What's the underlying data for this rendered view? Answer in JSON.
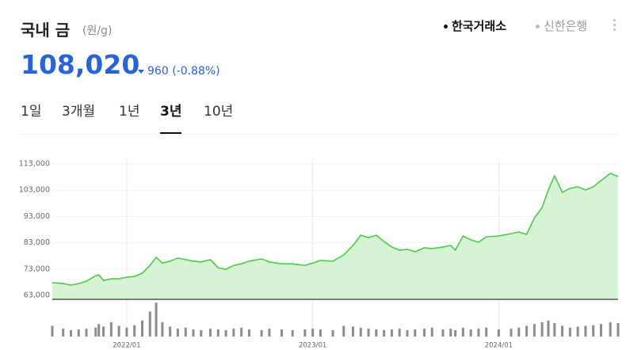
{
  "header": {
    "title": "국내 금",
    "unit": "(원/g)",
    "sources": [
      "한국거래소",
      "신한은행"
    ],
    "price": "108,020",
    "change": "960",
    "change_pct": "(-0.88%)",
    "tabs": [
      "1일",
      "3개월",
      "1년",
      "3년",
      "10년"
    ],
    "active_tab": 3
  },
  "chart_data": {
    "type": "line",
    "color": "#4cc94c",
    "fill": "#d6f3d3",
    "grid": true,
    "x": [
      0,
      0.7,
      1.2,
      1.7,
      2.2,
      2.8,
      3.0,
      3.3,
      3.8,
      4.3,
      4.8,
      5.3,
      5.8,
      6.3,
      6.7,
      7.1,
      7.6,
      8.1,
      8.6,
      9.1,
      9.6,
      10.2,
      10.7,
      11.2,
      11.7,
      12.2,
      12.7,
      13.5,
      14.0,
      14.8,
      15.5,
      16.3,
      16.8,
      17.3,
      18.1,
      18.8,
      19.4,
      19.9,
      20.4,
      20.9,
      21.4,
      21.9,
      22.4,
      22.9,
      23.4,
      24.0,
      24.5,
      25.2,
      25.7,
      26.0,
      26.5,
      27.0,
      27.5,
      28.0,
      28.8,
      29.6,
      30.1,
      30.6,
      31.1,
      31.6,
      32.0,
      32.4,
      32.9,
      33.4,
      33.9,
      34.4,
      34.9,
      35.4,
      36.0,
      36.5
    ],
    "values": [
      67800,
      67500,
      66900,
      67500,
      68400,
      70500,
      70800,
      68700,
      69300,
      69300,
      69900,
      70200,
      71400,
      74400,
      77500,
      75300,
      76000,
      77200,
      76600,
      76000,
      75700,
      76600,
      73500,
      72900,
      74400,
      75000,
      76000,
      76900,
      75700,
      75000,
      75000,
      74400,
      75300,
      76300,
      76000,
      78400,
      82000,
      85900,
      85000,
      85900,
      83500,
      81400,
      80200,
      80500,
      79600,
      81100,
      80800,
      81400,
      82000,
      80200,
      85600,
      84100,
      83200,
      85300,
      85600,
      86500,
      87100,
      86200,
      92500,
      96400,
      103100,
      108500,
      102200,
      103700,
      104300,
      103100,
      104300,
      106700,
      109400,
      108200
    ],
    "volume": [
      30,
      22,
      18,
      20,
      22,
      25,
      35,
      28,
      40,
      30,
      25,
      32,
      45,
      70,
      95,
      40,
      28,
      22,
      25,
      20,
      18,
      22,
      20,
      18,
      22,
      25,
      20,
      18,
      22,
      20,
      18,
      20,
      22,
      20,
      18,
      30,
      28,
      25,
      22,
      20,
      18,
      20,
      22,
      18,
      20,
      22,
      25,
      20,
      22,
      18,
      25,
      20,
      22,
      25,
      20,
      22,
      25,
      30,
      35,
      40,
      45,
      38,
      30,
      25,
      28,
      30,
      32,
      35,
      40,
      38
    ],
    "volume_color": "#8c8c8c",
    "volume_lim": [
      0,
      100
    ],
    "xlim": [
      0,
      36.5
    ],
    "xticks": [
      {
        "value": 4.8,
        "label": "2022/01"
      },
      {
        "value": 16.8,
        "label": "2023/01"
      },
      {
        "value": 28.8,
        "label": "2024/01"
      }
    ],
    "ylim": [
      61500,
      115100
    ],
    "yticks": [
      {
        "value": 63000,
        "label": "63,000"
      },
      {
        "value": 73000,
        "label": "73,000"
      },
      {
        "value": 83000,
        "label": "83,000"
      },
      {
        "value": 93000,
        "label": "93,000"
      },
      {
        "value": 103000,
        "label": "103,000"
      },
      {
        "value": 113000,
        "label": "113,000"
      }
    ]
  }
}
